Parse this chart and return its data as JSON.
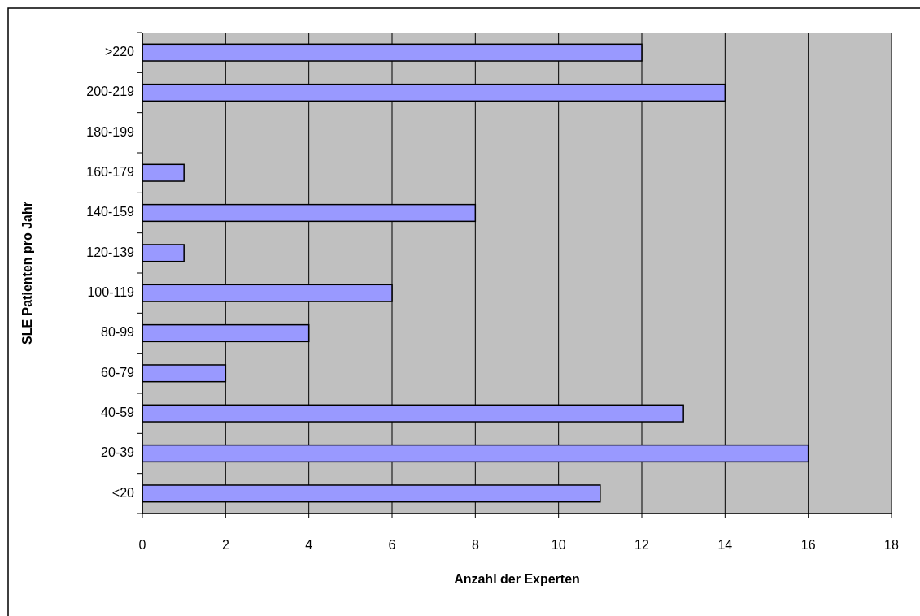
{
  "chart_data": {
    "type": "bar",
    "orientation": "horizontal",
    "xlabel": "Anzahl der Experten",
    "ylabel": "SLE Patienten pro Jahr",
    "categories": [
      ">220",
      "200-219",
      "180-199",
      "160-179",
      "140-159",
      "120-139",
      "100-119",
      "80-99",
      "60-79",
      "40-59",
      "20-39",
      "<20"
    ],
    "values": [
      12,
      14,
      null,
      1,
      8,
      1,
      6,
      4,
      2,
      13,
      16,
      11
    ],
    "color": "#9999ff",
    "xlim": [
      0,
      18
    ],
    "xticks": [
      0,
      2,
      4,
      6,
      8,
      10,
      12,
      14,
      16,
      18
    ],
    "grid": "x"
  }
}
